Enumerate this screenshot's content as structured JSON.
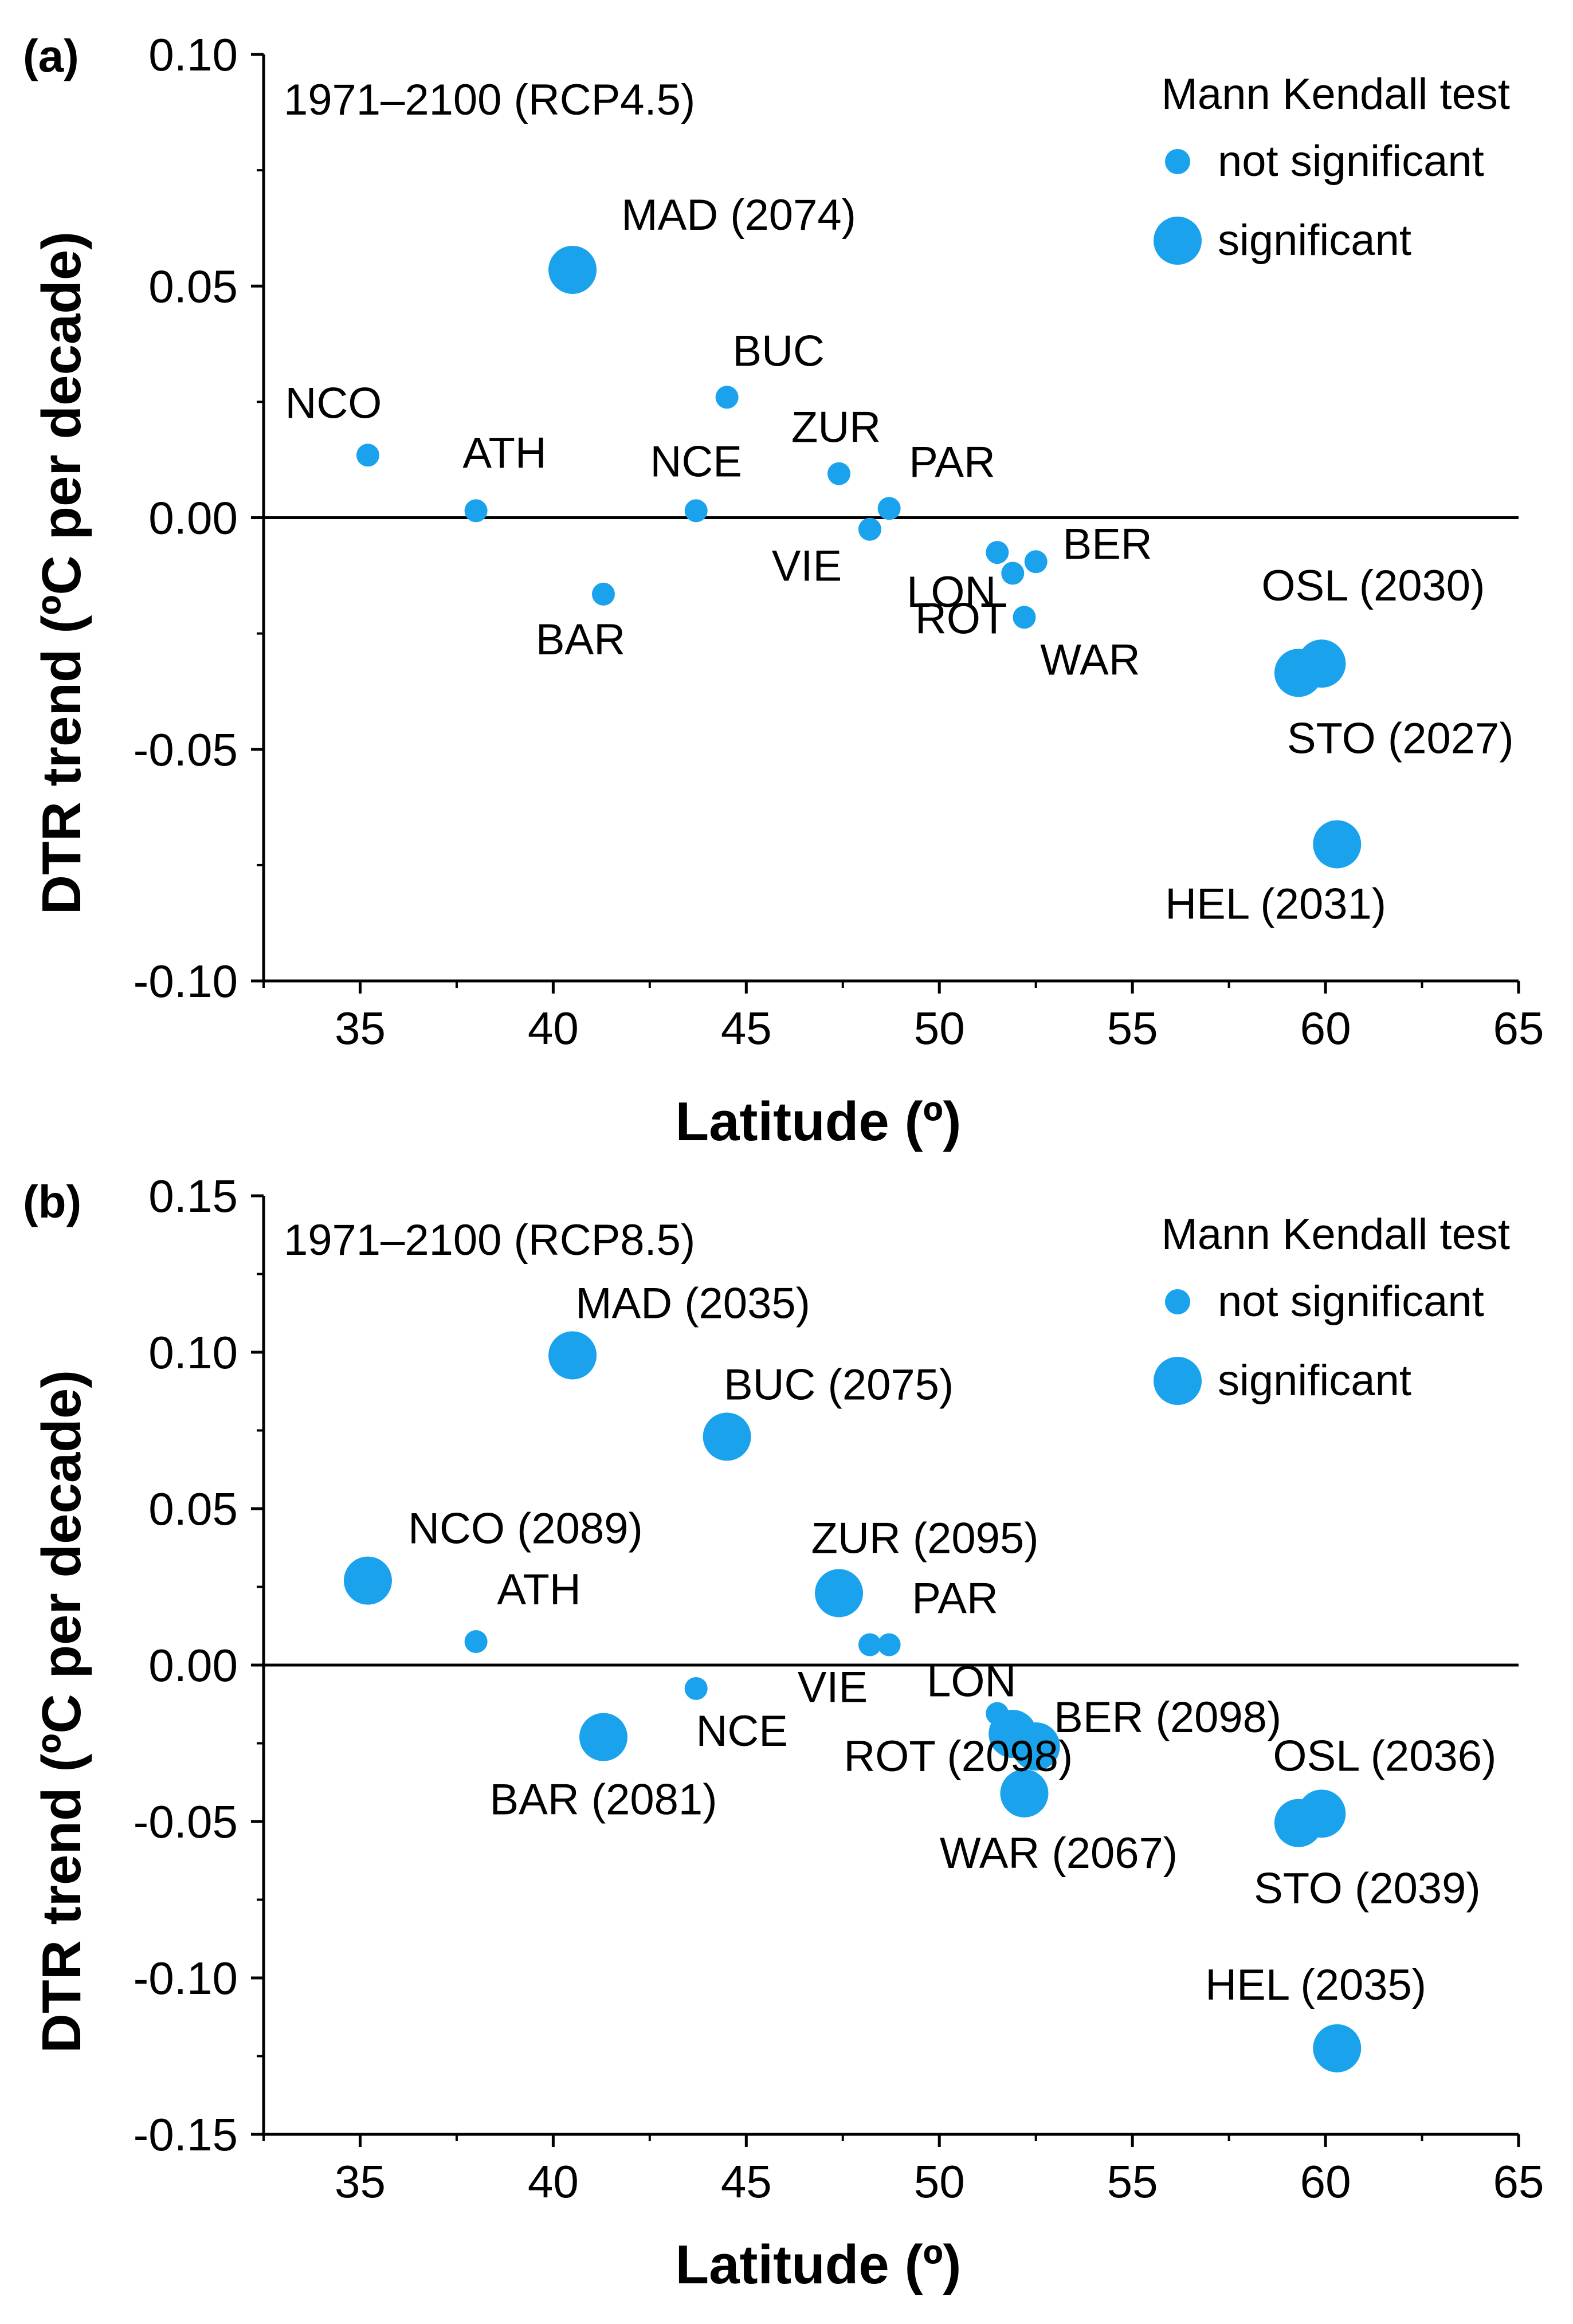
{
  "colors": {
    "marker": "#1aa3ec",
    "axis": "#000000",
    "background": "#ffffff"
  },
  "chart_data": [
    {
      "type": "scatter",
      "panel_label": "(a)",
      "title": "1971–2100 (RCP4.5)",
      "xlabel": "Latitude (º)",
      "ylabel": "DTR trend (ºC per decade)",
      "xlim": [
        32.5,
        65
      ],
      "ylim": [
        -0.1,
        0.1
      ],
      "xticks": [
        35,
        40,
        45,
        50,
        55,
        60,
        65
      ],
      "xtick_labels": [
        "35",
        "40",
        "45",
        "50",
        "55",
        "60",
        "65"
      ],
      "yticks": [
        -0.1,
        -0.05,
        0.0,
        0.05,
        0.1
      ],
      "ytick_labels": [
        "-0.10",
        "-0.05",
        "0.00",
        "0.05",
        "0.10"
      ],
      "legend": {
        "title": "Mann Kendall test",
        "location": "top-right",
        "entries": [
          {
            "label": "not significant",
            "significant": false
          },
          {
            "label": "significant",
            "significant": true
          }
        ]
      },
      "points": [
        {
          "label": "NCO",
          "year": "",
          "lat": 35.2,
          "trend": 0.0135,
          "significant": false
        },
        {
          "label": "ATH",
          "year": "",
          "lat": 38.0,
          "trend": 0.0015,
          "significant": false
        },
        {
          "label": "MAD",
          "year": "(2074)",
          "lat": 40.5,
          "trend": 0.0535,
          "significant": true
        },
        {
          "label": "BAR",
          "year": "",
          "lat": 41.3,
          "trend": -0.0165,
          "significant": false
        },
        {
          "label": "NCE",
          "year": "",
          "lat": 43.7,
          "trend": 0.0015,
          "significant": false
        },
        {
          "label": "BUC",
          "year": "",
          "lat": 44.5,
          "trend": 0.026,
          "significant": false
        },
        {
          "label": "ZUR",
          "year": "",
          "lat": 47.4,
          "trend": 0.0095,
          "significant": false
        },
        {
          "label": "VIE",
          "year": "",
          "lat": 48.2,
          "trend": -0.0025,
          "significant": false
        },
        {
          "label": "PAR",
          "year": "",
          "lat": 48.7,
          "trend": 0.002,
          "significant": false
        },
        {
          "label": "LON",
          "year": "",
          "lat": 51.5,
          "trend": -0.0075,
          "significant": false
        },
        {
          "label": "ROT",
          "year": "",
          "lat": 51.9,
          "trend": -0.012,
          "significant": false
        },
        {
          "label": "WAR",
          "year": "",
          "lat": 52.2,
          "trend": -0.0215,
          "significant": false
        },
        {
          "label": "BER",
          "year": "",
          "lat": 52.5,
          "trend": -0.0095,
          "significant": false
        },
        {
          "label": "STO",
          "year": "(2027)",
          "lat": 59.3,
          "trend": -0.0335,
          "significant": true
        },
        {
          "label": "OSL",
          "year": "(2030)",
          "lat": 59.9,
          "trend": -0.0315,
          "significant": true
        },
        {
          "label": "HEL",
          "year": "(2031)",
          "lat": 60.3,
          "trend": -0.0705,
          "significant": true
        }
      ]
    },
    {
      "type": "scatter",
      "panel_label": "(b)",
      "title": "1971–2100 (RCP8.5)",
      "xlabel": "Latitude (º)",
      "ylabel": "DTR trend (ºC per decade)",
      "xlim": [
        32.5,
        65
      ],
      "ylim": [
        -0.15,
        0.15
      ],
      "xticks": [
        35,
        40,
        45,
        50,
        55,
        60,
        65
      ],
      "xtick_labels": [
        "35",
        "40",
        "45",
        "50",
        "55",
        "60",
        "65"
      ],
      "yticks": [
        -0.15,
        -0.1,
        -0.05,
        0.0,
        0.05,
        0.1,
        0.15
      ],
      "ytick_labels": [
        "-0.15",
        "-0.10",
        "-0.05",
        "0.00",
        "0.05",
        "0.10",
        "0.15"
      ],
      "legend": {
        "title": "Mann Kendall test",
        "location": "top-right",
        "entries": [
          {
            "label": "not significant",
            "significant": false
          },
          {
            "label": "significant",
            "significant": true
          }
        ]
      },
      "points": [
        {
          "label": "NCO",
          "year": "(2089)",
          "lat": 35.2,
          "trend": 0.027,
          "significant": true
        },
        {
          "label": "ATH",
          "year": "",
          "lat": 38.0,
          "trend": 0.0075,
          "significant": false
        },
        {
          "label": "MAD",
          "year": "(2035)",
          "lat": 40.5,
          "trend": 0.099,
          "significant": true
        },
        {
          "label": "BAR",
          "year": "(2081)",
          "lat": 41.3,
          "trend": -0.023,
          "significant": true
        },
        {
          "label": "NCE",
          "year": "",
          "lat": 43.7,
          "trend": -0.0075,
          "significant": false
        },
        {
          "label": "BUC",
          "year": "(2075)",
          "lat": 44.5,
          "trend": 0.073,
          "significant": true
        },
        {
          "label": "ZUR",
          "year": "(2095)",
          "lat": 47.4,
          "trend": 0.023,
          "significant": true
        },
        {
          "label": "VIE",
          "year": "",
          "lat": 48.2,
          "trend": 0.0065,
          "significant": false
        },
        {
          "label": "PAR",
          "year": "",
          "lat": 48.7,
          "trend": 0.0065,
          "significant": false
        },
        {
          "label": "LON",
          "year": "",
          "lat": 51.5,
          "trend": -0.0155,
          "significant": false
        },
        {
          "label": "ROT",
          "year": "(2098)",
          "lat": 51.9,
          "trend": -0.022,
          "significant": true
        },
        {
          "label": "WAR",
          "year": "(2067)",
          "lat": 52.2,
          "trend": -0.041,
          "significant": true
        },
        {
          "label": "BER",
          "year": "(2098)",
          "lat": 52.5,
          "trend": -0.026,
          "significant": true
        },
        {
          "label": "STO",
          "year": "(2039)",
          "lat": 59.3,
          "trend": -0.0505,
          "significant": true
        },
        {
          "label": "OSL",
          "year": "(2036)",
          "lat": 59.9,
          "trend": -0.0475,
          "significant": true
        },
        {
          "label": "HEL",
          "year": "(2035)",
          "lat": 60.3,
          "trend": -0.1225,
          "significant": true
        }
      ]
    }
  ]
}
